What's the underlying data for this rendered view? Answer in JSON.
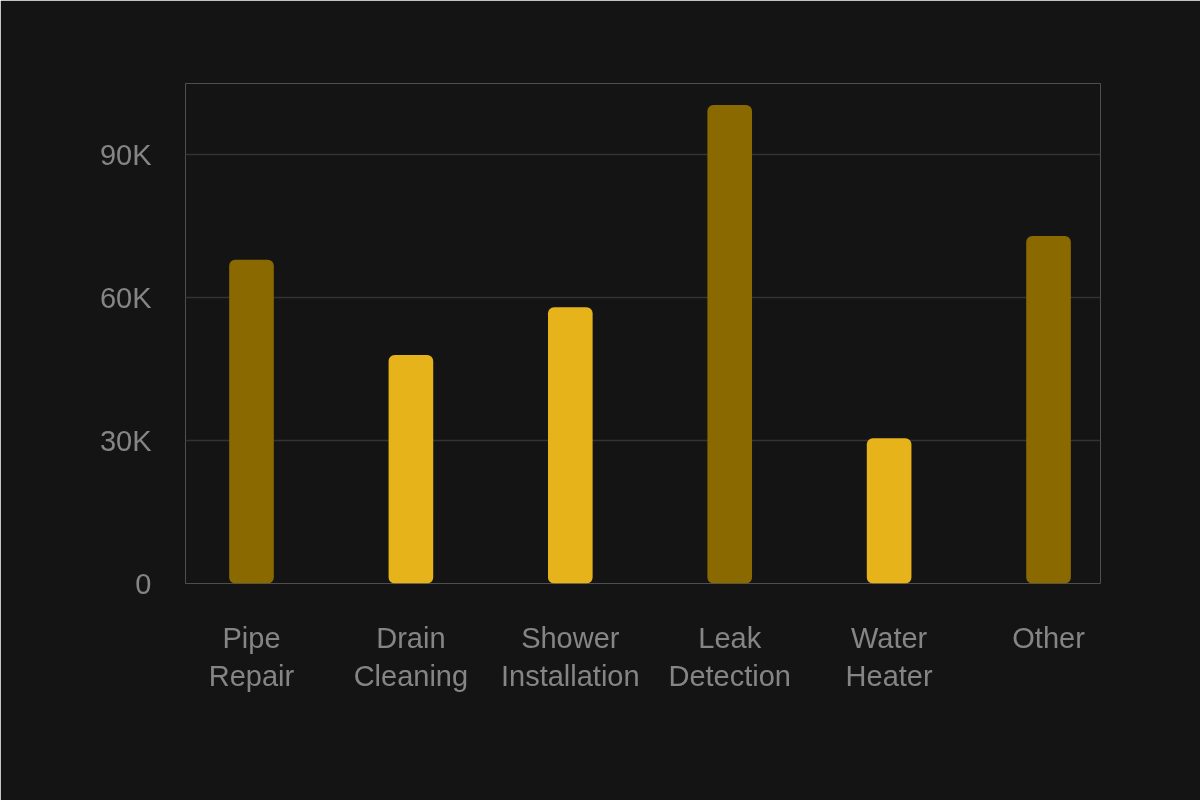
{
  "chart_data": {
    "type": "bar",
    "categories": [
      "Pipe Repair",
      "Drain Cleaning",
      "Shower Installation",
      "Leak Detection",
      "Water Heater",
      "Other"
    ],
    "values": [
      68000,
      48000,
      58000,
      100500,
      30500,
      73000
    ],
    "colors": [
      "#8a6a00",
      "#e6b31a",
      "#e6b31a",
      "#8a6a00",
      "#e6b31a",
      "#8a6a00"
    ],
    "ylim": [
      0,
      105000
    ],
    "yticks": [
      0,
      {
        "value": 30000,
        "label": "30K"
      },
      {
        "value": 60000,
        "label": "60K"
      },
      {
        "value": 90000,
        "label": "90K"
      }
    ],
    "grid": "y"
  }
}
